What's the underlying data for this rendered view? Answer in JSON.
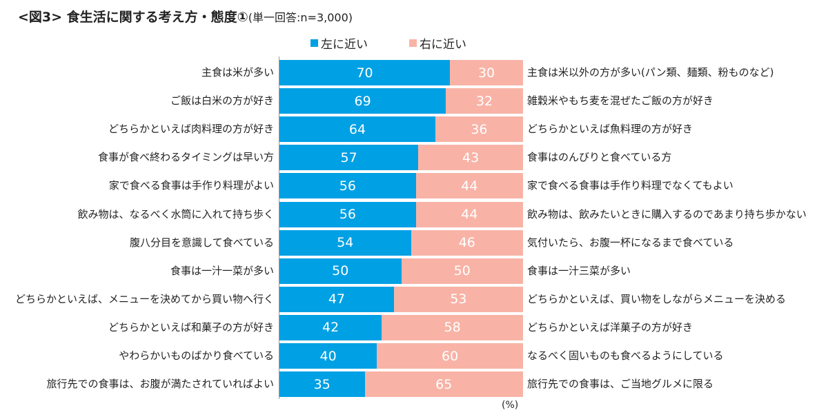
{
  "chart_data": {
    "type": "bar",
    "stacked": true,
    "orientation": "horizontal",
    "title": "<図3> 食生活に関する考え方・態度①",
    "subtitle": "(単一回答:n=3,000)",
    "unit": "(%)",
    "colors": {
      "left": "#00a0e4",
      "right": "#f8b3a6"
    },
    "series": [
      {
        "name": "左に近い"
      },
      {
        "name": "右に近い"
      }
    ],
    "rows": [
      {
        "left": "主食は米が多い",
        "right": "主食は米以外の方が多い(パン類、麺類、粉ものなど)",
        "a": 70,
        "b": 30
      },
      {
        "left": "ご飯は白米の方が好き",
        "right": "雑穀米やもち麦を混ぜたご飯の方が好き",
        "a": 69,
        "b": 32
      },
      {
        "left": "どちらかといえば肉料理の方が好き",
        "right": "どちらかといえば魚料理の方が好き",
        "a": 64,
        "b": 36
      },
      {
        "left": "食事が食べ終わるタイミングは早い方",
        "right": "食事はのんびりと食べている方",
        "a": 57,
        "b": 43
      },
      {
        "left": "家で食べる食事は手作り料理がよい",
        "right": "家で食べる食事は手作り料理でなくてもよい",
        "a": 56,
        "b": 44
      },
      {
        "left": "飲み物は、なるべく水筒に入れて持ち歩く",
        "right": "飲み物は、飲みたいときに購入するのであまり持ち歩かない",
        "a": 56,
        "b": 44
      },
      {
        "left": "腹八分目を意識して食べている",
        "right": "気付いたら、お腹一杯になるまで食べている",
        "a": 54,
        "b": 46
      },
      {
        "left": "食事は一汁一菜が多い",
        "right": "食事は一汁三菜が多い",
        "a": 50,
        "b": 50
      },
      {
        "left": "どちらかといえば、メニューを決めてから買い物へ行く",
        "right": "どちらかといえば、買い物をしながらメニューを決める",
        "a": 47,
        "b": 53
      },
      {
        "left": "どちらかといえば和菓子の方が好き",
        "right": "どちらかといえば洋菓子の方が好き",
        "a": 42,
        "b": 58
      },
      {
        "left": "やわらかいものばかり食べている",
        "right": "なるべく固いものも食べるようにしている",
        "a": 40,
        "b": 60
      },
      {
        "left": "旅行先での食事は、お腹が満たされていればよい",
        "right": "旅行先での食事は、ご当地グルメに限る",
        "a": 35,
        "b": 65
      }
    ]
  }
}
